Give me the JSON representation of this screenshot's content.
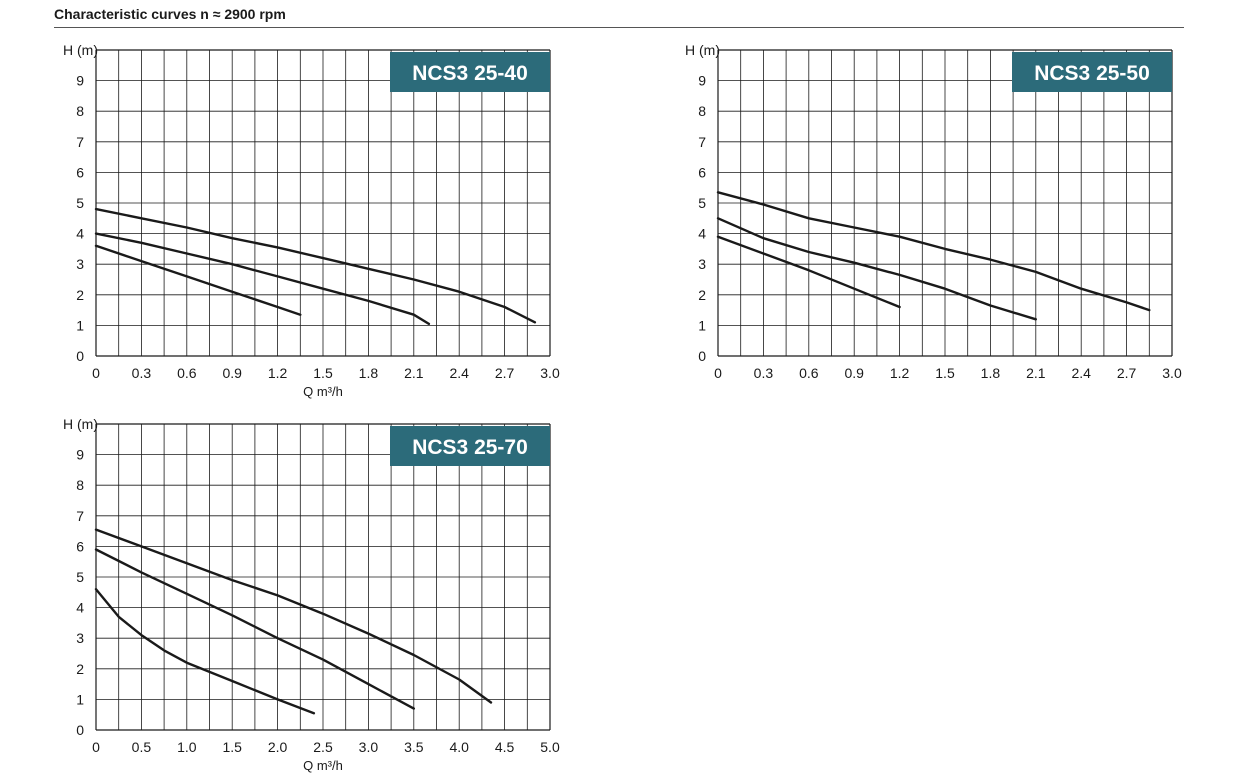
{
  "page": {
    "title": "Characteristic curves n ≈ 2900 rpm"
  },
  "colors": {
    "badge": "#2c6b7a",
    "curve": "#1a1a1a",
    "grid": "#1a1a1a"
  },
  "chart_data": [
    {
      "type": "line",
      "title": "NCS3 25-40",
      "xlabel": "Q m³/h",
      "ylabel": "H (m)",
      "xlim": [
        0,
        3.0
      ],
      "ylim": [
        0,
        10
      ],
      "x_ticks": [
        "0",
        "0.3",
        "0.6",
        "0.9",
        "1.2",
        "1.5",
        "1.8",
        "2.1",
        "2.4",
        "2.7",
        "3.0"
      ],
      "y_ticks": [
        "0",
        "1",
        "2",
        "3",
        "4",
        "5",
        "6",
        "7",
        "8",
        "9"
      ],
      "grid": true,
      "series": [
        {
          "x": [
            0,
            0.3,
            0.6,
            0.9,
            1.2,
            1.35
          ],
          "y": [
            3.6,
            3.1,
            2.6,
            2.1,
            1.6,
            1.35
          ]
        },
        {
          "x": [
            0,
            0.3,
            0.6,
            0.9,
            1.2,
            1.5,
            1.8,
            2.1,
            2.2
          ],
          "y": [
            4.0,
            3.7,
            3.35,
            3.0,
            2.6,
            2.2,
            1.8,
            1.35,
            1.05
          ]
        },
        {
          "x": [
            0,
            0.3,
            0.6,
            0.9,
            1.2,
            1.5,
            1.8,
            2.1,
            2.4,
            2.7,
            2.9
          ],
          "y": [
            4.8,
            4.5,
            4.2,
            3.85,
            3.55,
            3.2,
            2.85,
            2.5,
            2.1,
            1.6,
            1.1
          ]
        }
      ]
    },
    {
      "type": "line",
      "title": "NCS3 25-50",
      "xlabel": "",
      "ylabel": "H (m)",
      "xlim": [
        0,
        3.0
      ],
      "ylim": [
        0,
        10
      ],
      "x_ticks": [
        "0",
        "0.3",
        "0.6",
        "0.9",
        "1.2",
        "1.5",
        "1.8",
        "2.1",
        "2.4",
        "2.7",
        "3.0"
      ],
      "y_ticks": [
        "0",
        "1",
        "2",
        "3",
        "4",
        "5",
        "6",
        "7",
        "8",
        "9"
      ],
      "grid": true,
      "series": [
        {
          "x": [
            0,
            0.3,
            0.6,
            0.9,
            1.2
          ],
          "y": [
            3.9,
            3.35,
            2.8,
            2.2,
            1.6
          ]
        },
        {
          "x": [
            0,
            0.3,
            0.6,
            0.9,
            1.2,
            1.5,
            1.8,
            2.1
          ],
          "y": [
            4.5,
            3.85,
            3.4,
            3.05,
            2.65,
            2.2,
            1.65,
            1.2
          ]
        },
        {
          "x": [
            0,
            0.3,
            0.6,
            0.9,
            1.2,
            1.5,
            1.8,
            2.1,
            2.4,
            2.7,
            2.85
          ],
          "y": [
            5.35,
            4.95,
            4.5,
            4.2,
            3.9,
            3.5,
            3.15,
            2.75,
            2.2,
            1.75,
            1.5
          ]
        }
      ]
    },
    {
      "type": "line",
      "title": "NCS3 25-70",
      "xlabel": "Q m³/h",
      "ylabel": "H (m)",
      "xlim": [
        0,
        5.0
      ],
      "ylim": [
        0,
        10
      ],
      "x_ticks": [
        "0",
        "0.5",
        "1.0",
        "1.5",
        "2.0",
        "2.5",
        "3.0",
        "3.5",
        "4.0",
        "4.5",
        "5.0"
      ],
      "y_ticks": [
        "0",
        "1",
        "2",
        "3",
        "4",
        "5",
        "6",
        "7",
        "8",
        "9"
      ],
      "grid": true,
      "series": [
        {
          "x": [
            0,
            0.25,
            0.5,
            0.75,
            1.0,
            1.5,
            2.0,
            2.4
          ],
          "y": [
            4.6,
            3.7,
            3.1,
            2.6,
            2.2,
            1.6,
            1.0,
            0.55
          ]
        },
        {
          "x": [
            0,
            0.5,
            1.0,
            1.5,
            2.0,
            2.5,
            3.0,
            3.5
          ],
          "y": [
            5.9,
            5.15,
            4.45,
            3.75,
            3.0,
            2.3,
            1.5,
            0.7
          ]
        },
        {
          "x": [
            0,
            0.5,
            1.0,
            1.5,
            2.0,
            2.5,
            3.0,
            3.5,
            4.0,
            4.35
          ],
          "y": [
            6.55,
            6.0,
            5.45,
            4.9,
            4.4,
            3.8,
            3.15,
            2.45,
            1.65,
            0.9
          ]
        }
      ]
    }
  ]
}
